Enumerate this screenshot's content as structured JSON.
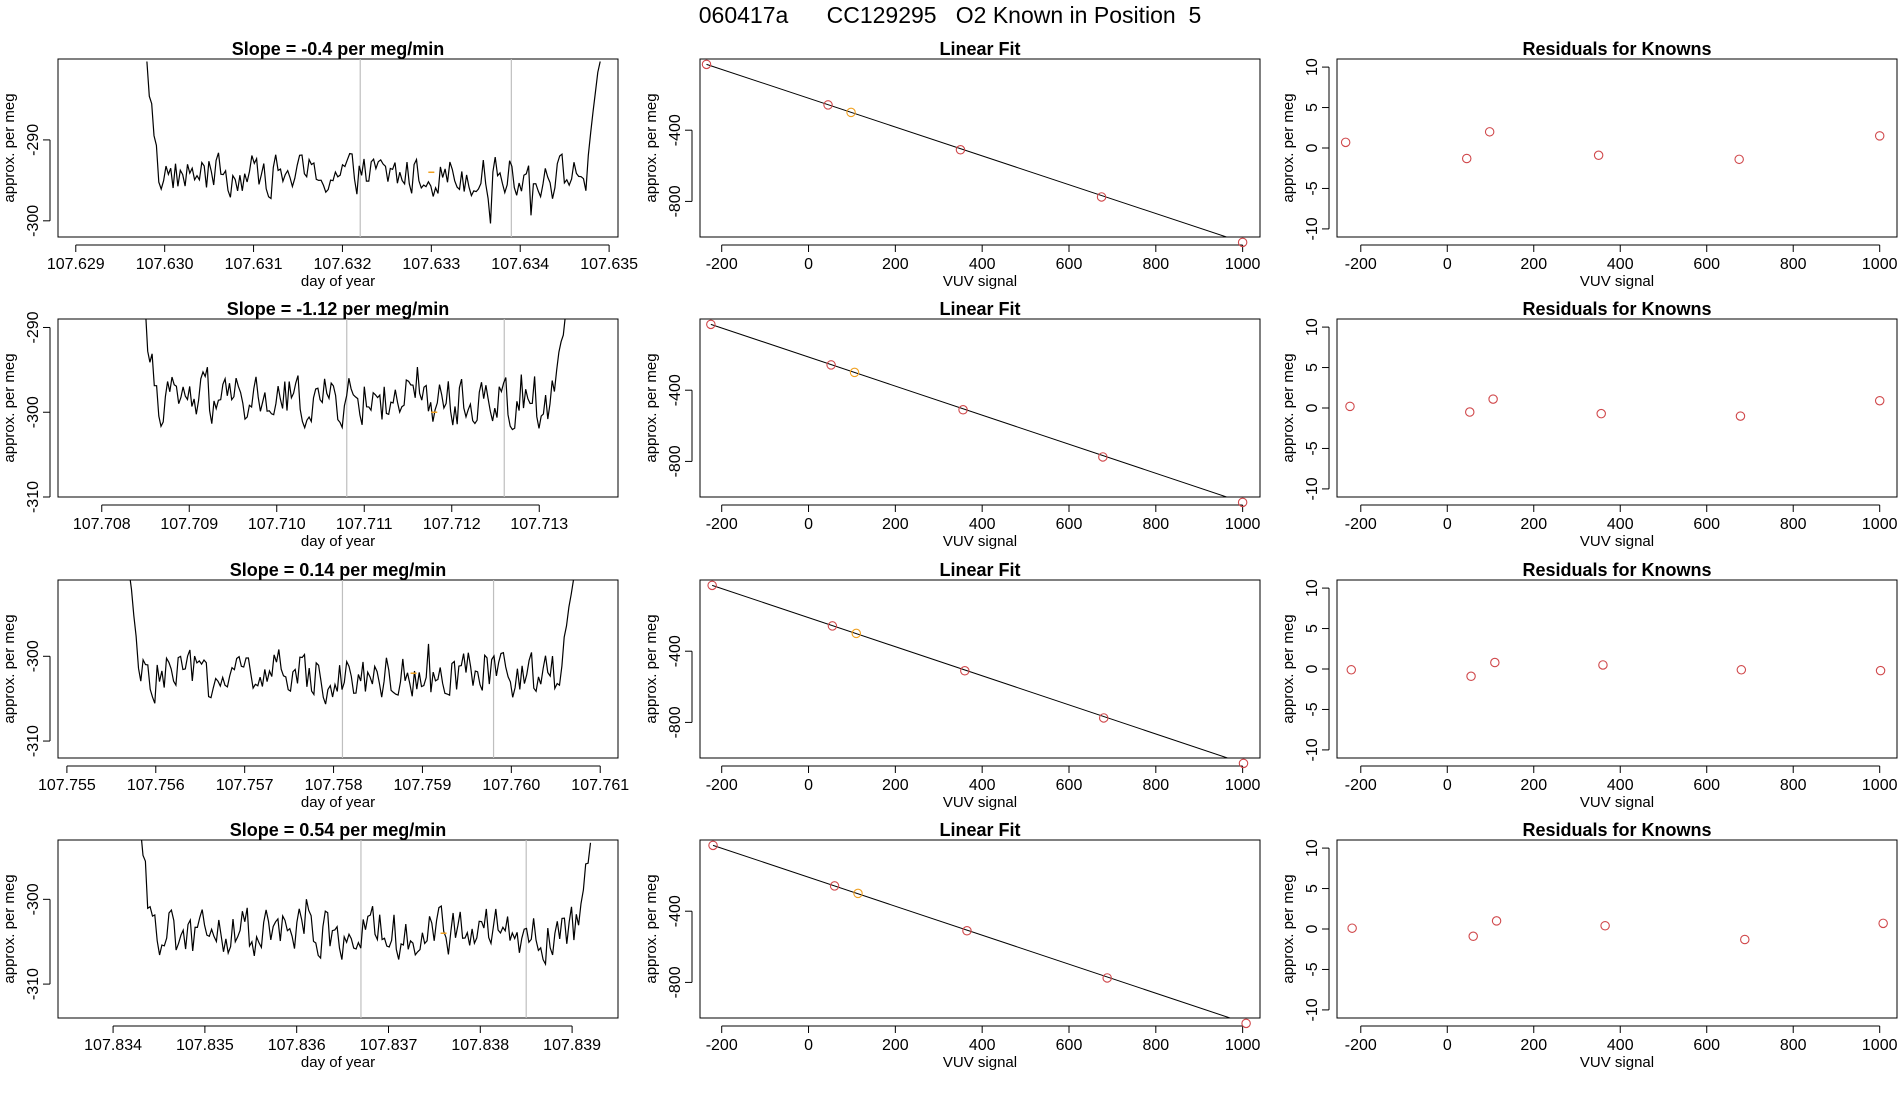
{
  "figure_title": "060417a      CC129295   O2 Known in Position  5",
  "colors": {
    "line": "#000000",
    "known_point": "#d0484b",
    "sample_point": "#f0a020",
    "vline": "#bfbfbf",
    "box": "#000000"
  },
  "chart_data": [
    {
      "type": "line",
      "panel": "time-series",
      "row": 0,
      "title": "Slope =  -0.4  per meg/min",
      "xlabel": "day of year",
      "ylabel": "approx. per meg",
      "xlim": [
        107.6288,
        107.6351
      ],
      "ylim": [
        -302,
        -280
      ],
      "xticks": [
        107.629,
        107.63,
        107.631,
        107.632,
        107.633,
        107.634,
        107.635
      ],
      "xtick_labels": [
        "107.629",
        "107.630",
        "107.631",
        "107.632",
        "107.633",
        "107.634",
        "107.635"
      ],
      "yticks": [
        -290,
        -300
      ],
      "ytick_labels": [
        "-290",
        "-300"
      ],
      "vlines": [
        107.6322,
        107.6339
      ],
      "series_x_range": [
        107.6298,
        107.6349
      ],
      "series_mean": -294.3,
      "series_noise": 1.6,
      "start_value": -281,
      "end_value": -280,
      "marker": {
        "x": 107.633,
        "y": -294
      }
    },
    {
      "type": "line",
      "panel": "time-series",
      "row": 1,
      "title": "Slope =  -1.12  per meg/min",
      "xlabel": "day of year",
      "ylabel": "approx. per meg",
      "xlim": [
        107.7075,
        107.7139
      ],
      "ylim": [
        -310,
        -289
      ],
      "xticks": [
        107.708,
        107.709,
        107.71,
        107.711,
        107.712,
        107.713
      ],
      "xtick_labels": [
        "107.708",
        "107.709",
        "107.710",
        "107.711",
        "107.712",
        "107.713"
      ],
      "yticks": [
        -290,
        -300,
        -310
      ],
      "ytick_labels": [
        "-290",
        "-300",
        "-310"
      ],
      "vlines": [
        107.7108,
        107.7126
      ],
      "series_x_range": [
        107.7085,
        107.7133
      ],
      "series_mean": -298.6,
      "series_noise": 1.9,
      "start_value": -289,
      "end_value": -289,
      "marker": {
        "x": 107.7118,
        "y": -300
      }
    },
    {
      "type": "line",
      "panel": "time-series",
      "row": 2,
      "title": "Slope =  0.14  per meg/min",
      "xlabel": "day of year",
      "ylabel": "approx. per meg",
      "xlim": [
        107.7549,
        107.7612
      ],
      "ylim": [
        -312,
        -291
      ],
      "xticks": [
        107.755,
        107.756,
        107.757,
        107.758,
        107.759,
        107.76,
        107.761
      ],
      "xtick_labels": [
        "107.755",
        "107.756",
        "107.757",
        "107.758",
        "107.759",
        "107.760",
        "107.761"
      ],
      "yticks": [
        -300,
        -310
      ],
      "ytick_labels": [
        "-300",
        "-310"
      ],
      "vlines": [
        107.7581,
        107.7598
      ],
      "series_x_range": [
        107.7557,
        107.7607
      ],
      "series_mean": -302.2,
      "series_noise": 1.8,
      "start_value": -291,
      "end_value": -291,
      "marker": {
        "x": 107.7589,
        "y": -302
      }
    },
    {
      "type": "line",
      "panel": "time-series",
      "row": 3,
      "title": "Slope =  0.54  per meg/min",
      "xlabel": "day of year",
      "ylabel": "approx. per meg",
      "xlim": [
        107.8334,
        107.8395
      ],
      "ylim": [
        -314,
        -293
      ],
      "xticks": [
        107.834,
        107.835,
        107.836,
        107.837,
        107.838,
        107.839
      ],
      "xtick_labels": [
        "107.834",
        "107.835",
        "107.836",
        "107.837",
        "107.838",
        "107.839"
      ],
      "yticks": [
        -300,
        -310
      ],
      "ytick_labels": [
        "-300",
        "-310"
      ],
      "vlines": [
        107.8367,
        107.8385
      ],
      "series_x_range": [
        107.8343,
        107.8392
      ],
      "series_mean": -304.0,
      "series_noise": 1.9,
      "start_value": -293,
      "end_value": -293,
      "marker": {
        "x": 107.8376,
        "y": -304
      }
    },
    {
      "type": "scatter",
      "panel": "linear-fit",
      "row": 0,
      "title": "Linear Fit",
      "xlabel": "VUV signal",
      "ylabel": "approx. per meg",
      "xlim": [
        -250,
        1040
      ],
      "ylim": [
        -1000,
        0
      ],
      "xticks": [
        -200,
        0,
        200,
        400,
        600,
        800,
        1000
      ],
      "xtick_labels": [
        "-200",
        "0",
        "200",
        "400",
        "600",
        "800",
        "1000"
      ],
      "yticks": [
        -400,
        -800
      ],
      "ytick_labels": [
        "-400",
        "-800"
      ],
      "points": [
        {
          "x": -235,
          "y": -30
        },
        {
          "x": 45,
          "y": -258
        },
        {
          "x": 98,
          "y": -300
        },
        {
          "x": 350,
          "y": -510
        },
        {
          "x": 675,
          "y": -775
        },
        {
          "x": 1000,
          "y": -1030
        }
      ],
      "sample_index": 2,
      "fit_line": [
        {
          "x": -235,
          "y": -30
        },
        {
          "x": 1000,
          "y": -1030
        }
      ]
    },
    {
      "type": "scatter",
      "panel": "linear-fit",
      "row": 1,
      "title": "Linear Fit",
      "xlabel": "VUV signal",
      "ylabel": "approx. per meg",
      "xlim": [
        -250,
        1040
      ],
      "ylim": [
        -1000,
        0
      ],
      "xticks": [
        -200,
        0,
        200,
        400,
        600,
        800,
        1000
      ],
      "xtick_labels": [
        "-200",
        "0",
        "200",
        "400",
        "600",
        "800",
        "1000"
      ],
      "yticks": [
        -400,
        -800
      ],
      "ytick_labels": [
        "-400",
        "-800"
      ],
      "points": [
        {
          "x": -225,
          "y": -30
        },
        {
          "x": 52,
          "y": -258
        },
        {
          "x": 106,
          "y": -300
        },
        {
          "x": 356,
          "y": -510
        },
        {
          "x": 678,
          "y": -775
        },
        {
          "x": 1000,
          "y": -1030
        }
      ],
      "sample_index": 2,
      "fit_line": [
        {
          "x": -225,
          "y": -30
        },
        {
          "x": 1000,
          "y": -1030
        }
      ]
    },
    {
      "type": "scatter",
      "panel": "linear-fit",
      "row": 2,
      "title": "Linear Fit",
      "xlabel": "VUV signal",
      "ylabel": "approx. per meg",
      "xlim": [
        -250,
        1040
      ],
      "ylim": [
        -1000,
        0
      ],
      "xticks": [
        -200,
        0,
        200,
        400,
        600,
        800,
        1000
      ],
      "xtick_labels": [
        "-200",
        "0",
        "200",
        "400",
        "600",
        "800",
        "1000"
      ],
      "yticks": [
        -400,
        -800
      ],
      "ytick_labels": [
        "-400",
        "-800"
      ],
      "points": [
        {
          "x": -222,
          "y": -30
        },
        {
          "x": 55,
          "y": -258
        },
        {
          "x": 110,
          "y": -300
        },
        {
          "x": 360,
          "y": -510
        },
        {
          "x": 680,
          "y": -775
        },
        {
          "x": 1002,
          "y": -1030
        }
      ],
      "sample_index": 2,
      "fit_line": [
        {
          "x": -222,
          "y": -30
        },
        {
          "x": 1002,
          "y": -1030
        }
      ]
    },
    {
      "type": "scatter",
      "panel": "linear-fit",
      "row": 3,
      "title": "Linear Fit",
      "xlabel": "VUV signal",
      "ylabel": "approx. per meg",
      "xlim": [
        -250,
        1040
      ],
      "ylim": [
        -1000,
        0
      ],
      "xticks": [
        -200,
        0,
        200,
        400,
        600,
        800,
        1000
      ],
      "xtick_labels": [
        "-200",
        "0",
        "200",
        "400",
        "600",
        "800",
        "1000"
      ],
      "yticks": [
        -400,
        -800
      ],
      "ytick_labels": [
        "-400",
        "-800"
      ],
      "points": [
        {
          "x": -220,
          "y": -30
        },
        {
          "x": 60,
          "y": -258
        },
        {
          "x": 114,
          "y": -300
        },
        {
          "x": 365,
          "y": -510
        },
        {
          "x": 688,
          "y": -775
        },
        {
          "x": 1008,
          "y": -1030
        }
      ],
      "sample_index": 2,
      "fit_line": [
        {
          "x": -220,
          "y": -30
        },
        {
          "x": 1008,
          "y": -1030
        }
      ]
    },
    {
      "type": "scatter",
      "panel": "residuals",
      "row": 0,
      "title": "Residuals for Knowns",
      "xlabel": "VUV signal",
      "ylabel": "approx. per meg",
      "xlim": [
        -255,
        1040
      ],
      "ylim": [
        -11,
        11
      ],
      "xticks": [
        -200,
        0,
        200,
        400,
        600,
        800,
        1000
      ],
      "xtick_labels": [
        "-200",
        "0",
        "200",
        "400",
        "600",
        "800",
        "1000"
      ],
      "yticks": [
        10,
        5,
        0,
        -5,
        -10
      ],
      "ytick_labels": [
        "10",
        "5",
        "0",
        "-5",
        "-10"
      ],
      "points": [
        {
          "x": -235,
          "y": 0.7
        },
        {
          "x": 45,
          "y": -1.3
        },
        {
          "x": 98,
          "y": 2.0
        },
        {
          "x": 350,
          "y": -0.9
        },
        {
          "x": 675,
          "y": -1.4
        },
        {
          "x": 1000,
          "y": 1.5
        }
      ]
    },
    {
      "type": "scatter",
      "panel": "residuals",
      "row": 1,
      "title": "Residuals for Knowns",
      "xlabel": "VUV signal",
      "ylabel": "approx. per meg",
      "xlim": [
        -255,
        1040
      ],
      "ylim": [
        -11,
        11
      ],
      "xticks": [
        -200,
        0,
        200,
        400,
        600,
        800,
        1000
      ],
      "xtick_labels": [
        "-200",
        "0",
        "200",
        "400",
        "600",
        "800",
        "1000"
      ],
      "yticks": [
        10,
        5,
        0,
        -5,
        -10
      ],
      "ytick_labels": [
        "10",
        "5",
        "0",
        "-5",
        "-10"
      ],
      "points": [
        {
          "x": -225,
          "y": 0.2
        },
        {
          "x": 52,
          "y": -0.5
        },
        {
          "x": 106,
          "y": 1.1
        },
        {
          "x": 356,
          "y": -0.7
        },
        {
          "x": 678,
          "y": -1.0
        },
        {
          "x": 1000,
          "y": 0.9
        }
      ]
    },
    {
      "type": "scatter",
      "panel": "residuals",
      "row": 2,
      "title": "Residuals for Knowns",
      "xlabel": "VUV signal",
      "ylabel": "approx. per meg",
      "xlim": [
        -255,
        1040
      ],
      "ylim": [
        -11,
        11
      ],
      "xticks": [
        -200,
        0,
        200,
        400,
        600,
        800,
        1000
      ],
      "xtick_labels": [
        "-200",
        "0",
        "200",
        "400",
        "600",
        "800",
        "1000"
      ],
      "yticks": [
        10,
        5,
        0,
        -5,
        -10
      ],
      "ytick_labels": [
        "10",
        "5",
        "0",
        "-5",
        "-10"
      ],
      "points": [
        {
          "x": -222,
          "y": -0.1
        },
        {
          "x": 55,
          "y": -0.9
        },
        {
          "x": 110,
          "y": 0.8
        },
        {
          "x": 360,
          "y": 0.5
        },
        {
          "x": 680,
          "y": -0.1
        },
        {
          "x": 1002,
          "y": -0.2
        }
      ]
    },
    {
      "type": "scatter",
      "panel": "residuals",
      "row": 3,
      "title": "Residuals for Knowns",
      "xlabel": "VUV signal",
      "ylabel": "approx. per meg",
      "xlim": [
        -255,
        1040
      ],
      "ylim": [
        -11,
        11
      ],
      "xticks": [
        -200,
        0,
        200,
        400,
        600,
        800,
        1000
      ],
      "xtick_labels": [
        "-200",
        "0",
        "200",
        "400",
        "600",
        "800",
        "1000"
      ],
      "yticks": [
        10,
        5,
        0,
        -5,
        -10
      ],
      "ytick_labels": [
        "10",
        "5",
        "0",
        "-5",
        "-10"
      ],
      "points": [
        {
          "x": -220,
          "y": 0.1
        },
        {
          "x": 60,
          "y": -0.9
        },
        {
          "x": 114,
          "y": 1.0
        },
        {
          "x": 365,
          "y": 0.4
        },
        {
          "x": 688,
          "y": -1.3
        },
        {
          "x": 1008,
          "y": 0.7
        }
      ]
    }
  ]
}
